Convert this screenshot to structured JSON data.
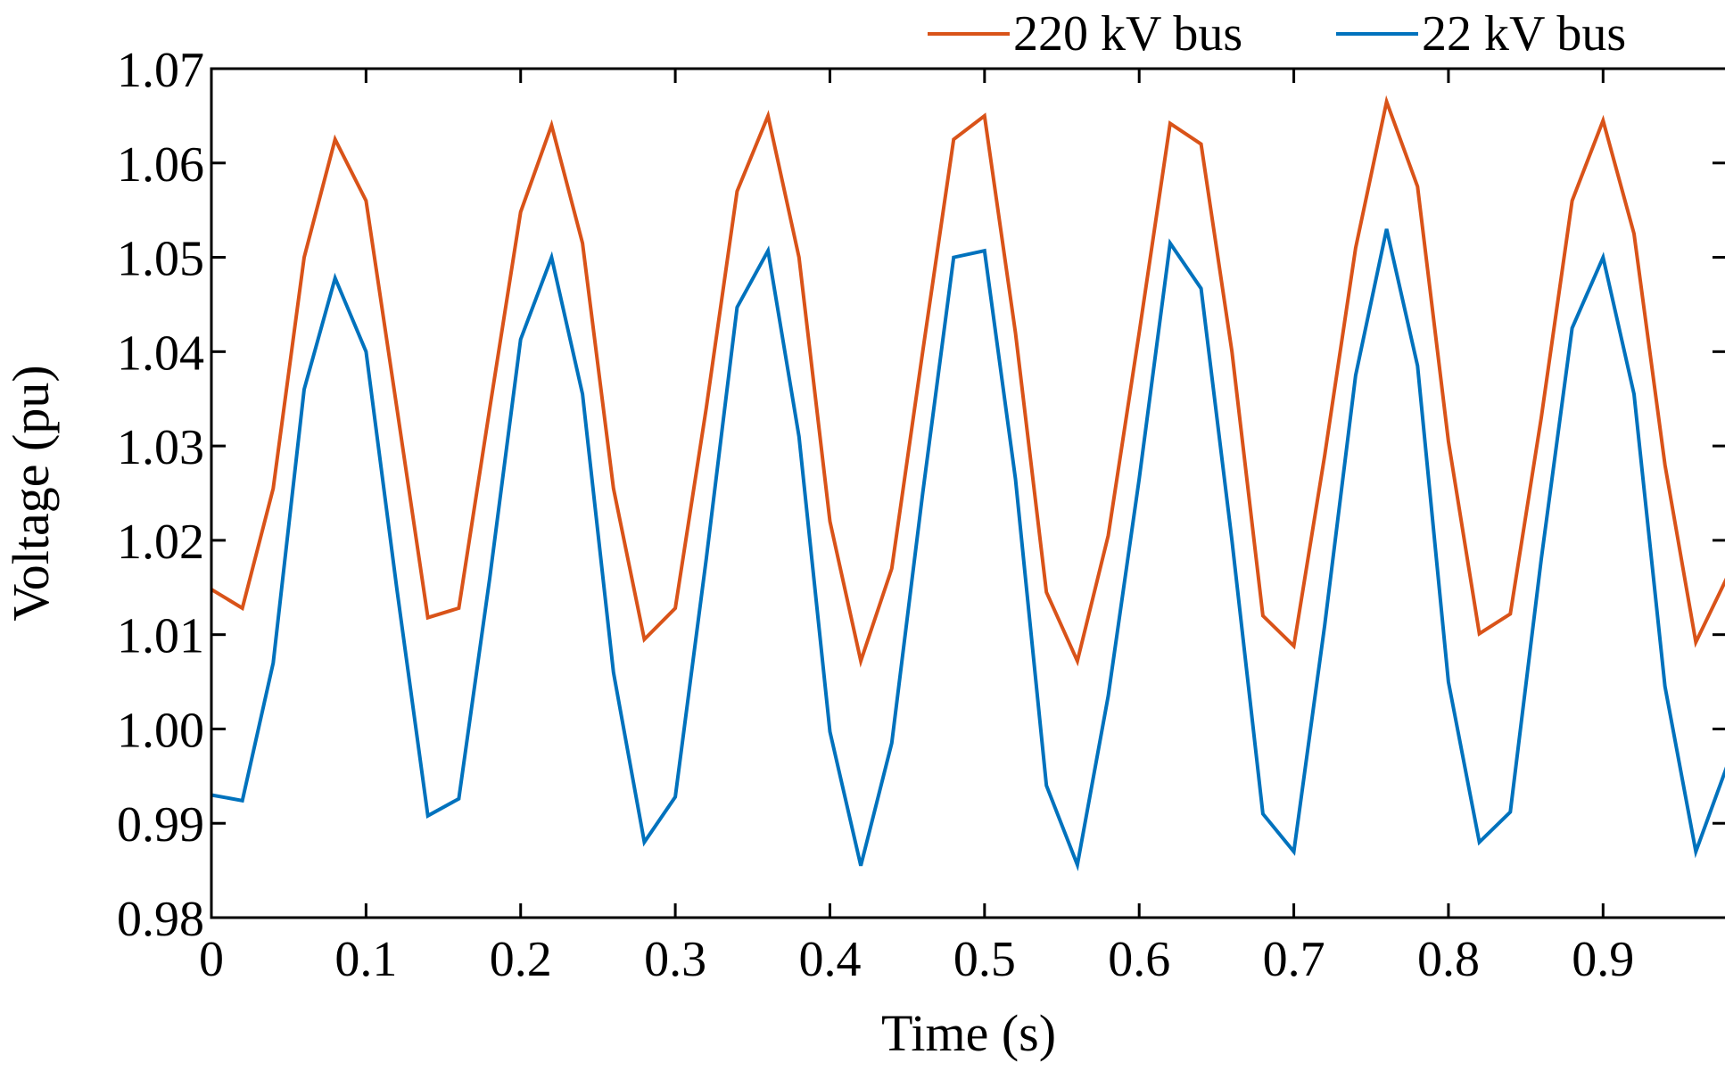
{
  "chart_data": {
    "type": "line",
    "title": "",
    "xlabel": "Time (s)",
    "ylabel": "Voltage (pu)",
    "xlim": [
      0,
      0.98
    ],
    "ylim": [
      0.98,
      1.07
    ],
    "grid": false,
    "legend_position": "top-right",
    "xticks": [
      0,
      0.1,
      0.2,
      0.3,
      0.4,
      0.5,
      0.6,
      0.7,
      0.8,
      0.9
    ],
    "xtick_labels": [
      "0",
      "0.1",
      "0.2",
      "0.3",
      "0.4",
      "0.5",
      "0.6",
      "0.7",
      "0.8",
      "0.9"
    ],
    "yticks": [
      0.98,
      0.99,
      1.0,
      1.01,
      1.02,
      1.03,
      1.04,
      1.05,
      1.06,
      1.07
    ],
    "ytick_labels": [
      "0.98",
      "0.99",
      "1.00",
      "1.01",
      "1.02",
      "1.03",
      "1.04",
      "1.05",
      "1.06",
      "1.07"
    ],
    "x": [
      0,
      0.02,
      0.04,
      0.06,
      0.08,
      0.1,
      0.12,
      0.14,
      0.16,
      0.18,
      0.2,
      0.22,
      0.24,
      0.26,
      0.28,
      0.3,
      0.32,
      0.34,
      0.36,
      0.38,
      0.4,
      0.42,
      0.44,
      0.46,
      0.48,
      0.5,
      0.52,
      0.54,
      0.56,
      0.58,
      0.6,
      0.62,
      0.64,
      0.66,
      0.68,
      0.7,
      0.72,
      0.74,
      0.76,
      0.78,
      0.8,
      0.82,
      0.84,
      0.86,
      0.88,
      0.9,
      0.92,
      0.94,
      0.96,
      0.98
    ],
    "series": [
      {
        "name": "220 kV bus",
        "color": "#d95319",
        "values": [
          1.0148,
          1.0128,
          1.0255,
          1.05,
          1.0625,
          1.056,
          1.034,
          1.0118,
          1.0128,
          1.034,
          1.0548,
          1.064,
          1.0515,
          1.0255,
          1.0095,
          1.0128,
          1.034,
          1.057,
          1.065,
          1.05,
          1.022,
          1.0072,
          1.017,
          1.04,
          1.0625,
          1.065,
          1.042,
          1.0145,
          1.0072,
          1.0205,
          1.042,
          1.0642,
          1.062,
          1.04,
          1.012,
          1.0088,
          1.029,
          1.051,
          1.0665,
          1.0575,
          1.0305,
          1.0101,
          1.0122,
          1.033,
          1.056,
          1.0645,
          1.0525,
          1.028,
          1.0092,
          1.016
        ]
      },
      {
        "name": "22 kV bus",
        "color": "#0072bd",
        "values": [
          0.993,
          0.9924,
          1.007,
          1.036,
          1.0478,
          1.04,
          1.0148,
          0.9908,
          0.9926,
          1.016,
          1.0413,
          1.05,
          1.0355,
          1.006,
          0.988,
          0.9928,
          1.018,
          1.0447,
          1.0507,
          1.031,
          0.9997,
          0.9855,
          0.9985,
          1.025,
          1.05,
          1.0507,
          1.0265,
          0.994,
          0.9856,
          1.0035,
          1.0265,
          1.0515,
          1.0467,
          1.02,
          0.991,
          0.987,
          1.011,
          1.0375,
          1.053,
          1.0385,
          1.005,
          0.988,
          0.9912,
          1.018,
          1.0425,
          1.05,
          1.0355,
          1.0045,
          0.987,
          0.996
        ]
      }
    ]
  }
}
